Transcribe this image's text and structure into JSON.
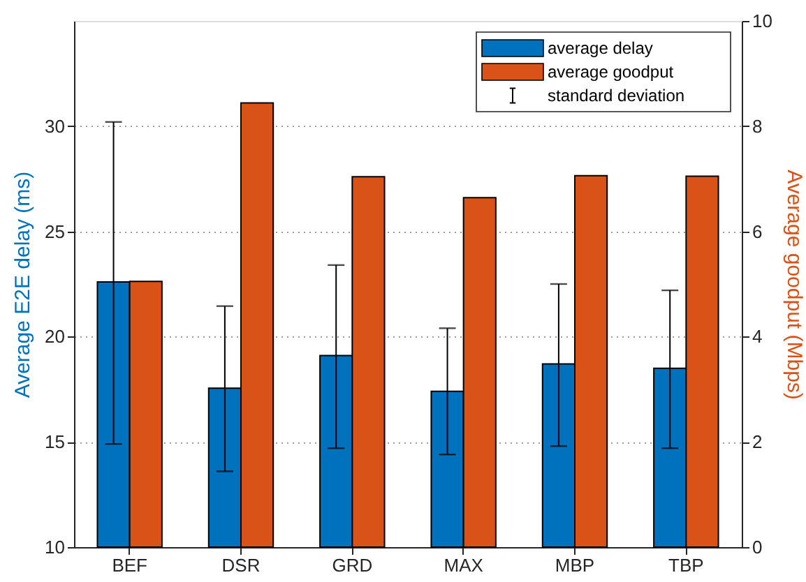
{
  "chart_data": {
    "type": "bar",
    "categories": [
      "BEF",
      "DSR",
      "GRD",
      "MAX",
      "MBP",
      "TBP"
    ],
    "ylabel": "Average E2E delay (ms)",
    "y2label": "Average goodput (Mbps)",
    "ylim": [
      10,
      35
    ],
    "yticks": [
      10,
      15,
      20,
      25,
      30
    ],
    "y2lim": [
      0,
      10
    ],
    "y2ticks": [
      0,
      2,
      4,
      6,
      8,
      10
    ],
    "grid": "y",
    "legend": "top right",
    "annotations": [
      "standard deviation"
    ],
    "series": [
      {
        "name": "average delay",
        "color": "#0072bd",
        "values": [
          22.6,
          17.55,
          19.1,
          17.4,
          18.7,
          18.5
        ],
        "errors": [
          [
            14.9,
            30.2
          ],
          [
            13.6,
            21.45
          ],
          [
            14.7,
            23.4
          ],
          [
            14.4,
            20.4
          ],
          [
            14.8,
            22.5
          ],
          [
            14.7,
            22.2
          ]
        ]
      },
      {
        "name": "average goodput",
        "color": "#d95319",
        "values": [
          5.05,
          8.44,
          7.04,
          6.64,
          7.06,
          7.05
        ],
        "axis": "y2"
      }
    ]
  }
}
